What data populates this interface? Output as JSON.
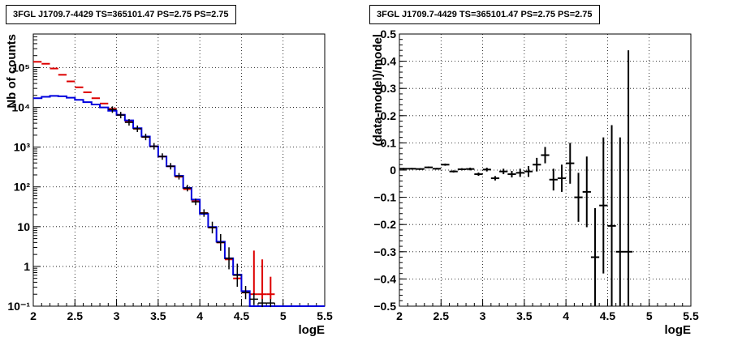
{
  "chart_data": [
    {
      "type": "line",
      "title": "3FGL J1709.7-4429 TS=365101.47 PS=2.75 PS=2.75",
      "xlabel": "logE",
      "ylabel": "Nb of counts",
      "xlim": [
        2,
        5.5
      ],
      "ylim": [
        0.1,
        700000
      ],
      "yscale": "log",
      "grid": true,
      "xticks": [
        "2",
        "2.5",
        "3",
        "3.5",
        "4",
        "4.5",
        "5",
        "5.5"
      ],
      "yticks": [
        {
          "value": 0.1,
          "label": "10⁻¹"
        },
        {
          "value": 1,
          "label": "1"
        },
        {
          "value": 10,
          "label": "10"
        },
        {
          "value": 100,
          "label": "10²"
        },
        {
          "value": 1000,
          "label": "10³"
        },
        {
          "value": 10000,
          "label": "10⁴"
        },
        {
          "value": 100000,
          "label": "10⁵"
        }
      ],
      "series": [
        {
          "color": "#dd0000",
          "x": [
            2.05,
            2.15,
            2.25,
            2.35,
            2.45,
            2.55,
            2.65,
            2.75,
            2.85,
            2.95,
            3.05,
            3.15,
            3.25,
            3.35,
            3.45,
            3.55,
            3.65,
            3.75,
            3.85,
            3.95,
            4.05,
            4.15,
            4.25,
            4.35,
            4.45,
            4.55,
            4.65,
            4.75,
            4.85
          ],
          "y": [
            140000,
            125000,
            95000,
            66000,
            45000,
            32000,
            24000,
            17000,
            12500,
            9200,
            6500,
            4400,
            2900,
            1800,
            1050,
            580,
            330,
            180,
            88,
            44,
            22,
            9.5,
            4,
            1.5,
            0.5,
            0.22,
            0.2,
            0.2,
            0.2
          ],
          "err": [
            0,
            0,
            0,
            0,
            0,
            0,
            0,
            0,
            0,
            0,
            0,
            0,
            0,
            0,
            0,
            0,
            0,
            0,
            0,
            0,
            0,
            0,
            0,
            0,
            0,
            0,
            0,
            0,
            0
          ]
        },
        {
          "color": "#000000",
          "x": [
            2.95,
            3.05,
            3.15,
            3.25,
            3.35,
            3.45,
            3.55,
            3.65,
            3.75,
            3.85,
            3.95,
            4.05,
            4.15,
            4.25,
            4.35,
            4.45,
            4.55,
            4.65,
            4.75,
            4.85
          ],
          "y": [
            8800,
            6400,
            4200,
            2900,
            1800,
            1050,
            580,
            330,
            185,
            93,
            42,
            22,
            9.5,
            4,
            1.6,
            0.6,
            0.22,
            0.15,
            0.12,
            0.12
          ],
          "err": [
            90,
            80,
            64,
            53,
            42,
            32,
            24,
            18,
            14,
            10,
            6.5,
            4.7,
            3.1,
            1.8,
            0.9,
            0.35,
            0.08,
            0.05,
            0.04,
            0.04
          ]
        },
        {
          "color": "#0000dd",
          "x": [
            2.0,
            2.1,
            2.2,
            2.3,
            2.4,
            2.5,
            2.6,
            2.7,
            2.8,
            2.9,
            3.0,
            3.1,
            3.2,
            3.3,
            3.4,
            3.5,
            3.6,
            3.7,
            3.8,
            3.9,
            4.0,
            4.1,
            4.2,
            4.3,
            4.4,
            4.5,
            4.6,
            4.7,
            4.8,
            4.9,
            5.0,
            5.1,
            5.5
          ],
          "y": [
            17000,
            18500,
            19500,
            19000,
            17500,
            15500,
            13500,
            11800,
            10000,
            8200,
            6500,
            4700,
            3000,
            1850,
            1050,
            580,
            330,
            190,
            95,
            48,
            21,
            9.8,
            4.2,
            1.6,
            0.62,
            0.24,
            0.1,
            0.1,
            0.1,
            0.1,
            0.1,
            0.1,
            0.1
          ],
          "step": true
        }
      ]
    },
    {
      "type": "scatter",
      "title": "3FGL J1709.7-4429 TS=365101.47 PS=2.75 PS=2.75",
      "xlabel": "logE",
      "ylabel": "(data-model)/model",
      "xlim": [
        2,
        5.5
      ],
      "ylim": [
        -0.5,
        0.5
      ],
      "grid": true,
      "xticks": [
        "2",
        "2.5",
        "3",
        "3.5",
        "4",
        "4.5",
        "5",
        "5.5"
      ],
      "yticks": [
        "−0.5",
        "−0.4",
        "−0.3",
        "−0.2",
        "−0.1",
        "0",
        "0.1",
        "0.2",
        "0.3",
        "0.4",
        "0.5"
      ],
      "points": {
        "x": [
          2.05,
          2.15,
          2.25,
          2.35,
          2.45,
          2.55,
          2.65,
          2.75,
          2.85,
          2.95,
          3.05,
          3.15,
          3.25,
          3.35,
          3.45,
          3.55,
          3.65,
          3.75,
          3.85,
          3.95,
          4.05,
          4.15,
          4.25,
          4.35,
          4.45,
          4.55,
          4.65,
          4.75
        ],
        "y": [
          0.005,
          0.005,
          0.004,
          0.01,
          0.005,
          0.02,
          -0.005,
          0.003,
          0.004,
          -0.015,
          0.002,
          -0.03,
          -0.005,
          -0.015,
          -0.01,
          -0.005,
          0.02,
          0.055,
          -0.035,
          -0.03,
          0.025,
          -0.1,
          -0.08,
          -0.32,
          -0.13,
          -0.205,
          -0.3,
          -0.3
        ],
        "err": [
          0.003,
          0.003,
          0.003,
          0.003,
          0.003,
          0.004,
          0.004,
          0.004,
          0.005,
          0.006,
          0.007,
          0.008,
          0.01,
          0.012,
          0.015,
          0.02,
          0.025,
          0.03,
          0.04,
          0.05,
          0.075,
          0.09,
          0.13,
          0.18,
          0.25,
          0.37,
          0.42,
          0.74
        ]
      }
    }
  ]
}
